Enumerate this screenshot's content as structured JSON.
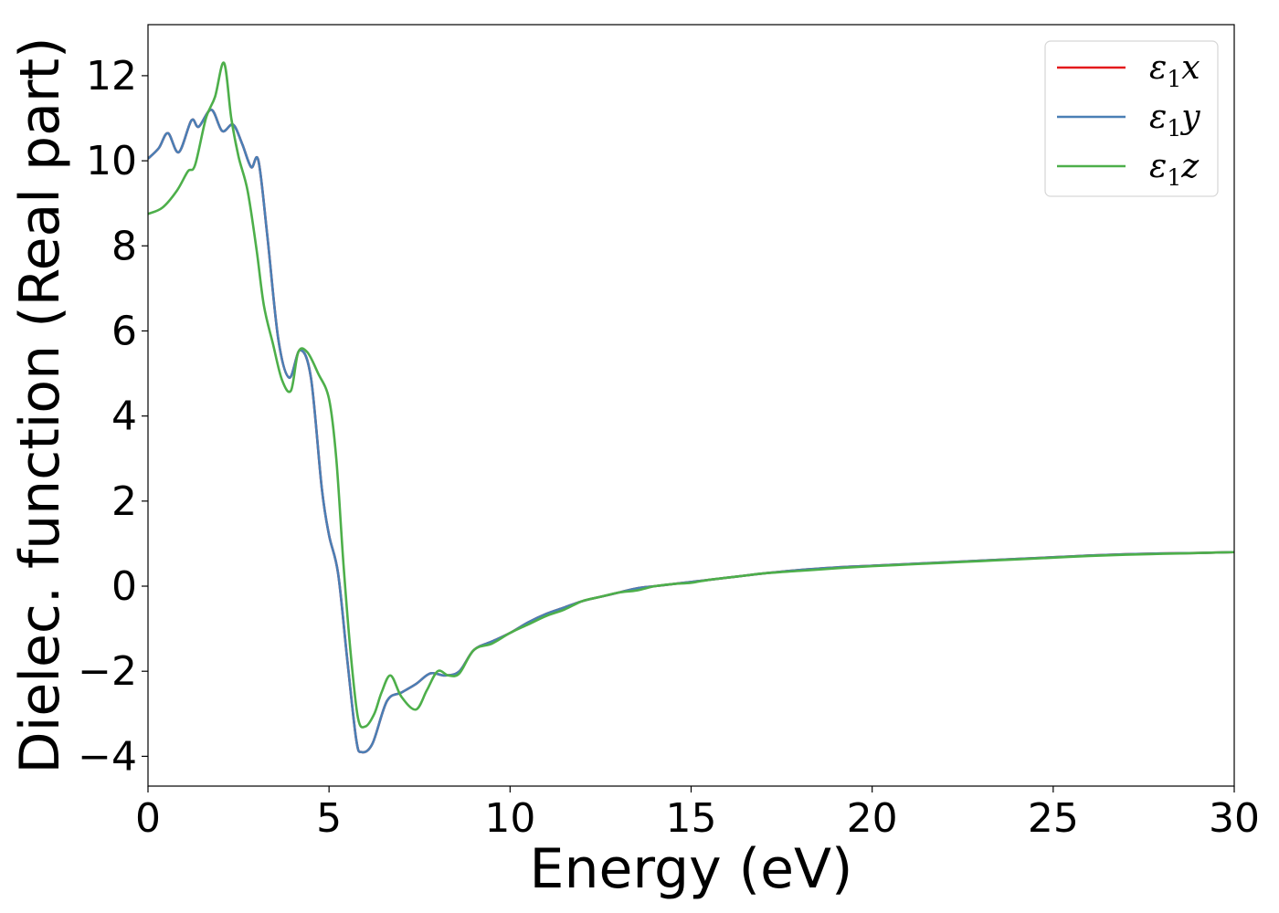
{
  "chart_data": {
    "type": "line",
    "title": "",
    "xlabel": "Energy (eV)",
    "ylabel": "Dielec. function (Real part)",
    "xlim": [
      0,
      30
    ],
    "ylim": [
      -4.7,
      13.2
    ],
    "xticks": [
      0,
      5,
      10,
      15,
      20,
      25,
      30
    ],
    "xtick_labels": [
      "0",
      "5",
      "10",
      "15",
      "20",
      "25",
      "30"
    ],
    "yticks": [
      -4,
      -2,
      0,
      2,
      4,
      6,
      8,
      10,
      12
    ],
    "ytick_labels": [
      "−4",
      "−2",
      "0",
      "2",
      "4",
      "6",
      "8",
      "10",
      "12"
    ],
    "grid": false,
    "legend_position": "top-right",
    "series": [
      {
        "name": "x",
        "legend_base": "ε",
        "legend_sub": "1",
        "legend_var": "x",
        "color": "#e41a1c",
        "x": [
          0,
          0.3,
          0.55,
          0.85,
          1.2,
          1.4,
          1.75,
          2.05,
          2.35,
          2.6,
          2.85,
          3.05,
          3.3,
          3.6,
          3.9,
          4.2,
          4.5,
          4.8,
          5.0,
          5.25,
          5.5,
          5.75,
          5.9,
          6.2,
          6.6,
          7.0,
          7.4,
          7.8,
          8.2,
          8.6,
          9.0,
          9.5,
          10,
          10.5,
          11,
          11.5,
          12,
          12.5,
          13,
          13.5,
          14,
          14.5,
          15,
          15.5,
          16,
          16.5,
          17,
          18,
          19,
          20,
          21,
          22,
          23,
          24,
          25,
          26,
          27,
          28,
          29,
          30
        ],
        "y": [
          10.05,
          10.3,
          10.65,
          10.2,
          10.95,
          10.8,
          11.2,
          10.7,
          10.85,
          10.4,
          9.85,
          10.0,
          8.2,
          5.8,
          4.9,
          5.55,
          4.9,
          2.3,
          1.2,
          0.3,
          -1.7,
          -3.6,
          -3.9,
          -3.7,
          -2.7,
          -2.5,
          -2.3,
          -2.05,
          -2.1,
          -2.0,
          -1.5,
          -1.3,
          -1.1,
          -0.85,
          -0.65,
          -0.5,
          -0.35,
          -0.25,
          -0.15,
          -0.05,
          0.0,
          0.05,
          0.1,
          0.15,
          0.2,
          0.25,
          0.3,
          0.38,
          0.44,
          0.48,
          0.52,
          0.56,
          0.6,
          0.64,
          0.68,
          0.72,
          0.75,
          0.77,
          0.78,
          0.8
        ]
      },
      {
        "name": "y",
        "legend_base": "ε",
        "legend_sub": "1",
        "legend_var": "y",
        "color": "#4a7fb5",
        "x": [
          0,
          0.3,
          0.55,
          0.85,
          1.2,
          1.4,
          1.75,
          2.05,
          2.35,
          2.6,
          2.85,
          3.05,
          3.3,
          3.6,
          3.9,
          4.2,
          4.5,
          4.8,
          5.0,
          5.25,
          5.5,
          5.75,
          5.9,
          6.2,
          6.6,
          7.0,
          7.4,
          7.8,
          8.2,
          8.6,
          9.0,
          9.5,
          10,
          10.5,
          11,
          11.5,
          12,
          12.5,
          13,
          13.5,
          14,
          14.5,
          15,
          15.5,
          16,
          16.5,
          17,
          18,
          19,
          20,
          21,
          22,
          23,
          24,
          25,
          26,
          27,
          28,
          29,
          30
        ],
        "y": [
          10.05,
          10.3,
          10.65,
          10.2,
          10.95,
          10.8,
          11.2,
          10.7,
          10.85,
          10.4,
          9.85,
          10.0,
          8.2,
          5.8,
          4.9,
          5.55,
          4.9,
          2.3,
          1.2,
          0.3,
          -1.7,
          -3.6,
          -3.9,
          -3.7,
          -2.7,
          -2.5,
          -2.3,
          -2.05,
          -2.1,
          -2.0,
          -1.5,
          -1.3,
          -1.1,
          -0.85,
          -0.65,
          -0.5,
          -0.35,
          -0.25,
          -0.15,
          -0.05,
          0.0,
          0.05,
          0.1,
          0.15,
          0.2,
          0.25,
          0.3,
          0.38,
          0.44,
          0.48,
          0.52,
          0.56,
          0.6,
          0.64,
          0.68,
          0.72,
          0.75,
          0.77,
          0.78,
          0.8
        ]
      },
      {
        "name": "z",
        "legend_base": "ε",
        "legend_sub": "1",
        "legend_var": "z",
        "color": "#4daf4a",
        "x": [
          0,
          0.4,
          0.8,
          1.1,
          1.3,
          1.6,
          1.85,
          2.1,
          2.3,
          2.5,
          2.75,
          3.0,
          3.2,
          3.45,
          3.7,
          3.95,
          4.15,
          4.4,
          4.7,
          5.0,
          5.2,
          5.4,
          5.6,
          5.8,
          6.0,
          6.25,
          6.45,
          6.7,
          7.0,
          7.4,
          7.7,
          8.0,
          8.3,
          8.6,
          9.0,
          9.5,
          10,
          10.5,
          11,
          11.5,
          12,
          12.5,
          13,
          13.5,
          14,
          14.5,
          15,
          15.5,
          16,
          16.5,
          17,
          18,
          19,
          20,
          21,
          22,
          23,
          24,
          25,
          26,
          27,
          28,
          29,
          30
        ],
        "y": [
          8.75,
          8.9,
          9.3,
          9.75,
          9.9,
          11.0,
          11.5,
          12.3,
          11.0,
          10.1,
          9.3,
          7.9,
          6.6,
          5.7,
          4.85,
          4.6,
          5.5,
          5.5,
          5.0,
          4.4,
          3.0,
          0.5,
          -1.6,
          -3.1,
          -3.3,
          -3.0,
          -2.5,
          -2.1,
          -2.6,
          -2.9,
          -2.45,
          -2.0,
          -2.1,
          -2.05,
          -1.5,
          -1.35,
          -1.1,
          -0.9,
          -0.7,
          -0.55,
          -0.35,
          -0.25,
          -0.15,
          -0.1,
          0.0,
          0.05,
          0.08,
          0.15,
          0.2,
          0.25,
          0.3,
          0.36,
          0.42,
          0.47,
          0.51,
          0.55,
          0.59,
          0.63,
          0.67,
          0.71,
          0.74,
          0.76,
          0.78,
          0.8
        ]
      }
    ]
  }
}
